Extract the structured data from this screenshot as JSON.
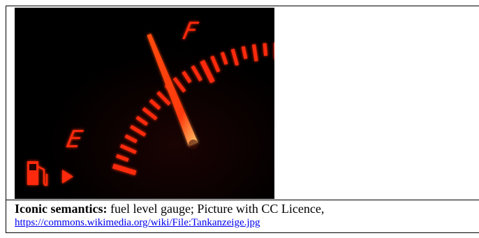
{
  "figure": {
    "photo_alt": "fuel level gauge",
    "gauge": {
      "full_label": "F",
      "empty_label": "E",
      "fuel_level": 0.5,
      "icon": "fuel-pump-icon",
      "indicator_icon": "triangle-right-icon",
      "glow_color": "#ff2a0a",
      "needle_color": "#ff3a12"
    },
    "caption": {
      "bold_label": "Iconic semantics:",
      "text": " fuel level gauge; Picture with CC Licence,",
      "link": "https://commons.wikimedia.org/wiki/File:Tankanzeige.jpg"
    }
  }
}
